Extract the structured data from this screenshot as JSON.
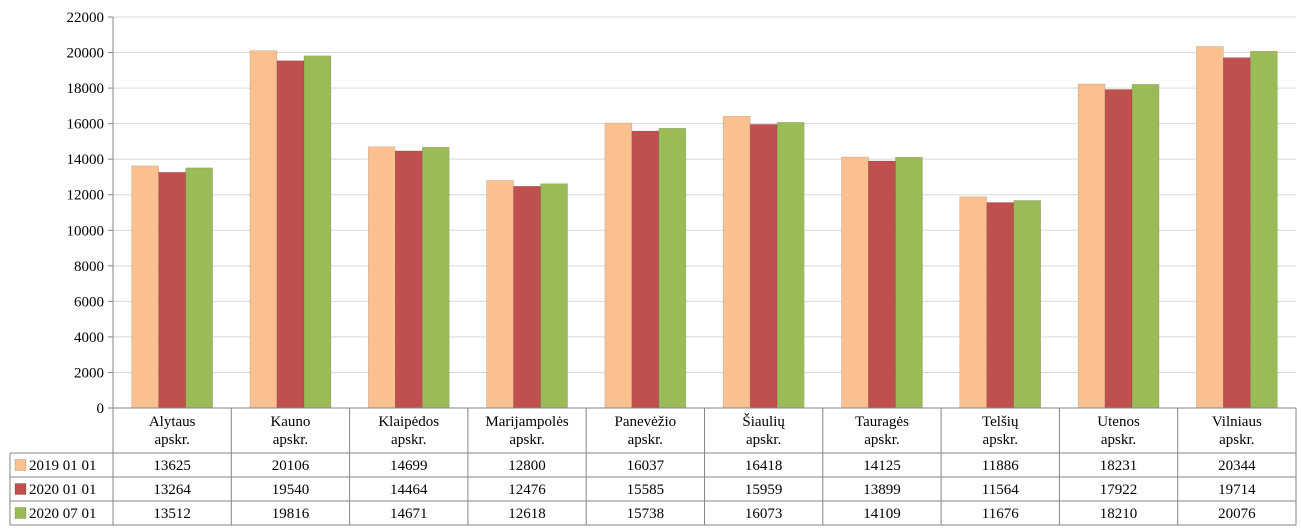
{
  "chart_data": {
    "type": "bar",
    "categories": [
      [
        "Alytaus",
        "apskr."
      ],
      [
        "Kauno",
        "apskr."
      ],
      [
        "Klaipėdos",
        "apskr."
      ],
      [
        "Marijampolės",
        "apskr."
      ],
      [
        "Panevėžio",
        "apskr."
      ],
      [
        "Šiaulių",
        "apskr."
      ],
      [
        "Tauragės",
        "apskr."
      ],
      [
        "Telšių",
        "apskr."
      ],
      [
        "Utenos",
        "apskr."
      ],
      [
        "Vilniaus",
        "apskr."
      ]
    ],
    "series": [
      {
        "name": "2019 01 01",
        "color": "#FAC090",
        "values": [
          13625,
          20106,
          14699,
          12800,
          16037,
          16418,
          14125,
          11886,
          18231,
          20344
        ]
      },
      {
        "name": "2020 01 01",
        "color": "#C0504D",
        "values": [
          13264,
          19540,
          14464,
          12476,
          15585,
          15959,
          13899,
          11564,
          17922,
          19714
        ]
      },
      {
        "name": "2020 07 01",
        "color": "#9BBB59",
        "values": [
          13512,
          19816,
          14671,
          12618,
          15738,
          16073,
          14109,
          11676,
          18210,
          20076
        ]
      }
    ],
    "ylim": [
      0,
      22000
    ],
    "yticks": [
      0,
      2000,
      4000,
      6000,
      8000,
      10000,
      12000,
      14000,
      16000,
      18000,
      20000,
      22000
    ],
    "grid": true,
    "legend": "data-table",
    "title": "",
    "xlabel": "",
    "ylabel": ""
  }
}
